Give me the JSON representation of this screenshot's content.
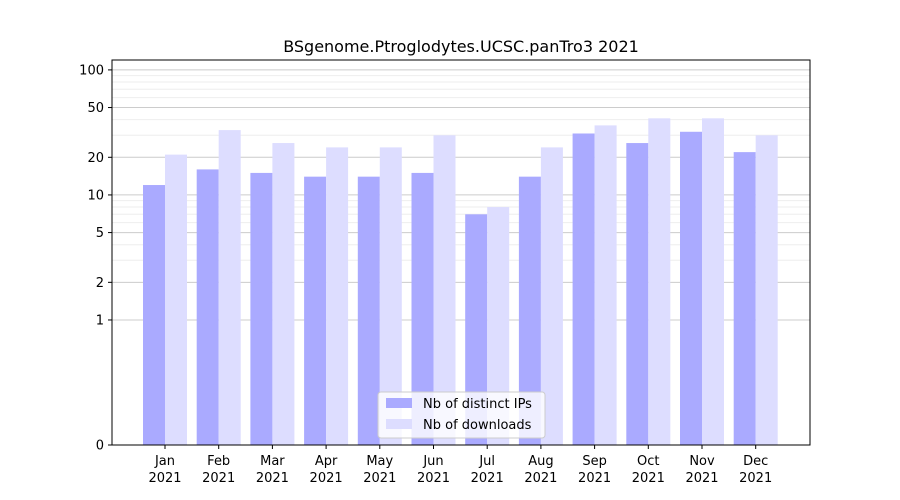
{
  "chart_data": {
    "type": "bar",
    "title": "BSgenome.Ptroglodytes.UCSC.panTro3 2021",
    "xlabel": "",
    "ylabel": "",
    "scale": "symlog",
    "ylim": [
      0,
      120
    ],
    "yticks": [
      0,
      1,
      2,
      5,
      10,
      20,
      50,
      100
    ],
    "grid": true,
    "legend_position": "bottom-center",
    "categories": [
      {
        "month": "Jan",
        "year": "2021"
      },
      {
        "month": "Feb",
        "year": "2021"
      },
      {
        "month": "Mar",
        "year": "2021"
      },
      {
        "month": "Apr",
        "year": "2021"
      },
      {
        "month": "May",
        "year": "2021"
      },
      {
        "month": "Jun",
        "year": "2021"
      },
      {
        "month": "Jul",
        "year": "2021"
      },
      {
        "month": "Aug",
        "year": "2021"
      },
      {
        "month": "Sep",
        "year": "2021"
      },
      {
        "month": "Oct",
        "year": "2021"
      },
      {
        "month": "Nov",
        "year": "2021"
      },
      {
        "month": "Dec",
        "year": "2021"
      }
    ],
    "series": [
      {
        "name": "Nb of distinct IPs",
        "color": "#aaaaff",
        "values": [
          12,
          16,
          15,
          14,
          14,
          15,
          7,
          14,
          31,
          26,
          32,
          22
        ]
      },
      {
        "name": "Nb of downloads",
        "color": "#ddddff",
        "values": [
          21,
          33,
          26,
          24,
          24,
          30,
          8,
          24,
          36,
          41,
          41,
          30
        ]
      }
    ]
  }
}
